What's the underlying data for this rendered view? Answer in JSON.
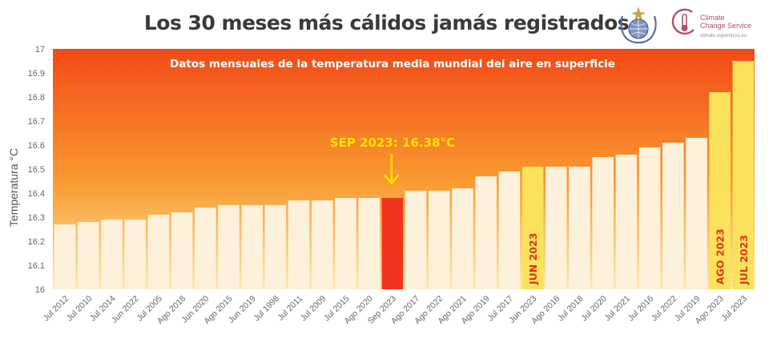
{
  "page": {
    "title": "Los 30 meses más cálidos jamás registrados",
    "logos": {
      "wmo": "wmo-logo",
      "c3s_name_line1": "Climate",
      "c3s_name_line2": "Change Service",
      "c3s_url": "climate.copernicus.eu"
    }
  },
  "chart_data": {
    "type": "bar",
    "title": "Los 30 meses más cálidos jamás registrados",
    "subtitle": "Datos mensuales de la temperatura media mundial del aire en superficie",
    "ylabel": "Temperatura °C",
    "xlabel": "",
    "ylim": [
      16,
      17
    ],
    "yticks": [
      16,
      16.1,
      16.2,
      16.3,
      16.4,
      16.5,
      16.6,
      16.7,
      16.8,
      16.9,
      17
    ],
    "grid": false,
    "categories": [
      "Jul 2012",
      "Jul 2010",
      "Jul 2014",
      "Jun 2022",
      "Jul 2005",
      "Ago 2018",
      "Jun 2020",
      "Ago 2015",
      "Jun 2019",
      "Jul 1998",
      "Jul 2011",
      "Jul 2009",
      "Jul 2015",
      "Ago 2020",
      "Sep 2023",
      "Ago 2017",
      "Ago 2022",
      "Ago 2021",
      "Ago 2019",
      "Jul 2017",
      "Jun 2023",
      "Ago 2016",
      "Jul 2018",
      "Jul 2020",
      "Jul 2021",
      "Jul 2016",
      "Jul 2022",
      "Jul 2019",
      "Ago 2023",
      "Jul 2023"
    ],
    "values": [
      16.27,
      16.28,
      16.29,
      16.29,
      16.31,
      16.32,
      16.34,
      16.35,
      16.35,
      16.35,
      16.37,
      16.37,
      16.38,
      16.38,
      16.38,
      16.41,
      16.41,
      16.42,
      16.47,
      16.49,
      16.51,
      16.51,
      16.51,
      16.55,
      16.56,
      16.59,
      16.61,
      16.63,
      16.82,
      16.95
    ],
    "highlights": [
      {
        "category": "Jun 2023",
        "label": "JUN 2023",
        "color": "#fbe25a"
      },
      {
        "category": "Ago 2023",
        "label": "AGO 2023",
        "color": "#fbe25a"
      },
      {
        "category": "Jul 2023",
        "label": "JUL 2023",
        "color": "#fbe25a"
      },
      {
        "category": "Sep 2023",
        "label": "",
        "color": "#f0341e"
      }
    ],
    "annotation": {
      "category": "Sep 2023",
      "text": "SEP 2023: 16.38°C",
      "color": "#ffe600"
    },
    "colors": {
      "bar_default": "#fdf1dc",
      "highlight_label": "#e0341c",
      "background_top": "#f24a17",
      "background_bottom": "#fde9a8"
    }
  }
}
